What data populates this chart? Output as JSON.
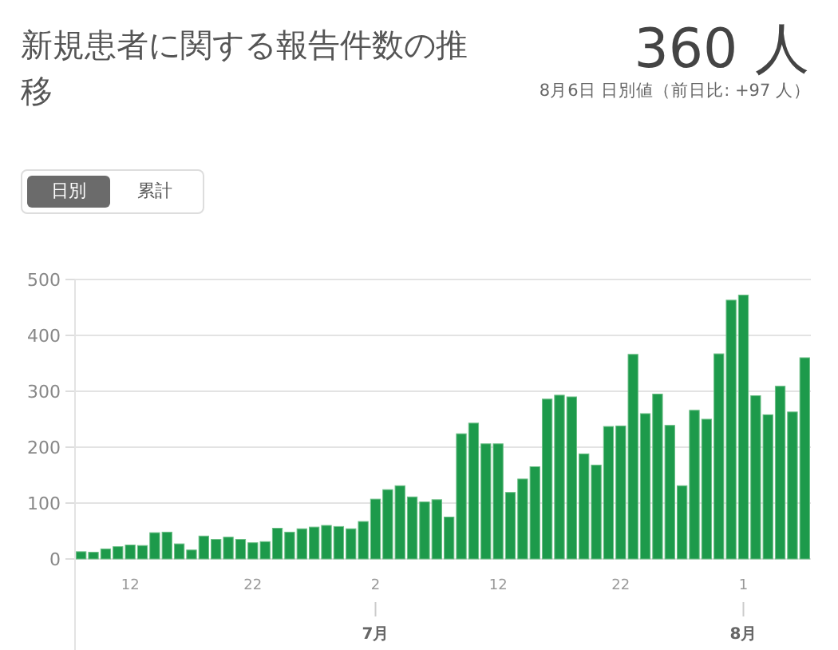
{
  "chart_data": {
    "type": "bar",
    "title": "新規患者に関する報告件数の推移",
    "subtitle": "8月6日 日別値（前日比: +97 人）",
    "annotations": [
      "360 人",
      "日別",
      "累計",
      {
        "text": "7月",
        "x": "2"
      },
      {
        "text": "8月",
        "x": "1"
      }
    ],
    "categories": [
      null,
      null,
      null,
      null,
      "12",
      null,
      null,
      null,
      null,
      null,
      null,
      null,
      null,
      null,
      "22",
      null,
      null,
      null,
      null,
      null,
      null,
      null,
      null,
      null,
      "2",
      null,
      null,
      null,
      null,
      null,
      null,
      null,
      null,
      null,
      "12",
      null,
      null,
      null,
      null,
      null,
      null,
      null,
      null,
      null,
      "22",
      null,
      null,
      null,
      null,
      null,
      null,
      null,
      null,
      null,
      "1",
      null,
      null,
      null,
      null,
      null
    ],
    "values": [
      13,
      12,
      18,
      22,
      25,
      24,
      47,
      48,
      27,
      16,
      41,
      35,
      39,
      35,
      29,
      31,
      55,
      48,
      54,
      57,
      60,
      58,
      54,
      67,
      107,
      124,
      131,
      111,
      102,
      106,
      75,
      224,
      243,
      206,
      206,
      119,
      143,
      165,
      286,
      293,
      290,
      188,
      168,
      237,
      238,
      366,
      260,
      295,
      239,
      131,
      266,
      250,
      367,
      463,
      472,
      292,
      258,
      309,
      263,
      360
    ],
    "color": "#1d9a4b",
    "ylim": [
      0,
      500
    ],
    "yticks": [
      0,
      100,
      200,
      300,
      400,
      500
    ],
    "grid": "y"
  }
}
